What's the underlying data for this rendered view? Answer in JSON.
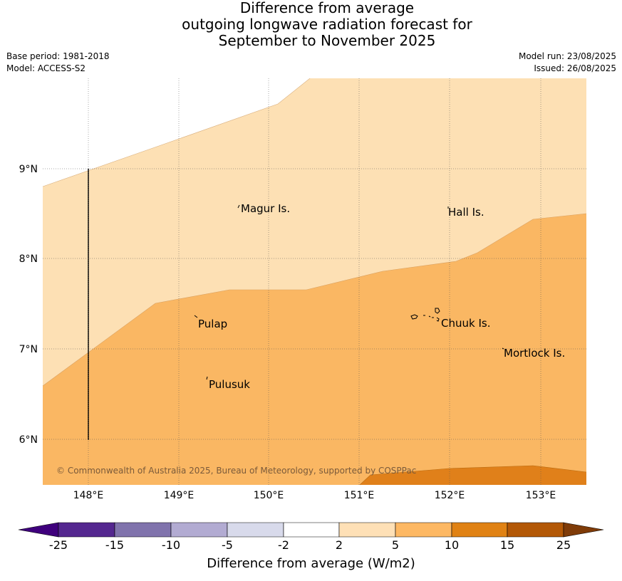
{
  "title": {
    "line1": "Difference from average",
    "line2": "outgoing longwave radiation forecast for",
    "line3": "September to November 2025"
  },
  "meta": {
    "base_period": "Base period: 1981-2018",
    "model": "Model: ACCESS-S2",
    "model_run": "Model run: 23/08/2025",
    "issued": "Issued: 26/08/2025"
  },
  "map": {
    "lon_ticks": [
      "148°E",
      "149°E",
      "150°E",
      "151°E",
      "152°E",
      "153°E"
    ],
    "lat_ticks": [
      "9°N",
      "8°N",
      "7°N",
      "6°N"
    ],
    "places": {
      "magur": "Magur Is.",
      "hall": "Hall Is.",
      "pulap": "Pulap",
      "chuuk": "Chuuk Is.",
      "mortlock": "Mortlock Is.",
      "pulusuk": "Pulusuk"
    },
    "copyright": "© Commonwealth of Australia 2025, Bureau of Meteorology, supported by COSPPac",
    "fill_colors": {
      "range_2_5": "#fde0b4",
      "range_5_10": "#fab763",
      "range_10_15": "#e0801a"
    }
  },
  "colorbar": {
    "ticks": [
      "-25",
      "-15",
      "-10",
      "-5",
      "-2",
      "2",
      "5",
      "10",
      "15",
      "25"
    ],
    "colors": [
      "#3f007d",
      "#54278f",
      "#8073ac",
      "#b2abd2",
      "#d8daeb",
      "#ffffff",
      "#fee0b6",
      "#fdb863",
      "#e08214",
      "#b35806",
      "#7f3b08"
    ],
    "label": "Difference from average (W/m2)"
  }
}
